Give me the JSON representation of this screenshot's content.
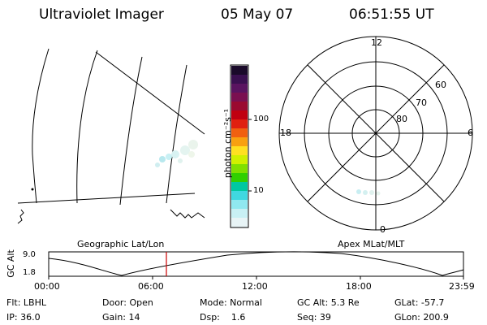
{
  "header": {
    "instrument": "Ultraviolet Imager",
    "date": "05 May 07",
    "time": "06:51:55 UT"
  },
  "colorbar": {
    "label": "photon cm⁻²s⁻¹",
    "ticks": [
      "100",
      "10"
    ],
    "colors": [
      "#1a0a2a",
      "#3a1050",
      "#5a1460",
      "#7a1050",
      "#9a0a30",
      "#c00010",
      "#e02010",
      "#f06010",
      "#f8a010",
      "#ffe020",
      "#d0f000",
      "#80e000",
      "#30d000",
      "#00c8a0",
      "#40d8e0",
      "#90e8f0",
      "#c8f0f4",
      "#e8f4f6"
    ]
  },
  "left_map": {
    "caption": "Geographic Lat/Lon"
  },
  "right_map": {
    "caption": "Apex MLat/MLT",
    "mlt_labels": {
      "top": "12",
      "left": "18",
      "right": "6",
      "bottom": "0"
    },
    "lat_labels": [
      "60",
      "70",
      "80"
    ]
  },
  "altitude_plot": {
    "ylabel": "GC Alt",
    "yticks": [
      "9.0",
      "1.8"
    ],
    "xticks": [
      "00:00",
      "06:00",
      "12:00",
      "18:00",
      "23:59"
    ],
    "marker_color": "#cc0000"
  },
  "info": {
    "row1": {
      "flt": "Flt: LBHL",
      "door": "Door: Open",
      "mode": "Mode: Normal",
      "gcalt": "GC Alt: 5.3 Re",
      "glat": "GLat: -57.7"
    },
    "row2": {
      "ip": "IP: 36.0",
      "gain": "Gain: 14",
      "dsp": "Dsp:    1.6",
      "seq": "Seq: 39",
      "glon": "GLon: 200.9"
    }
  }
}
